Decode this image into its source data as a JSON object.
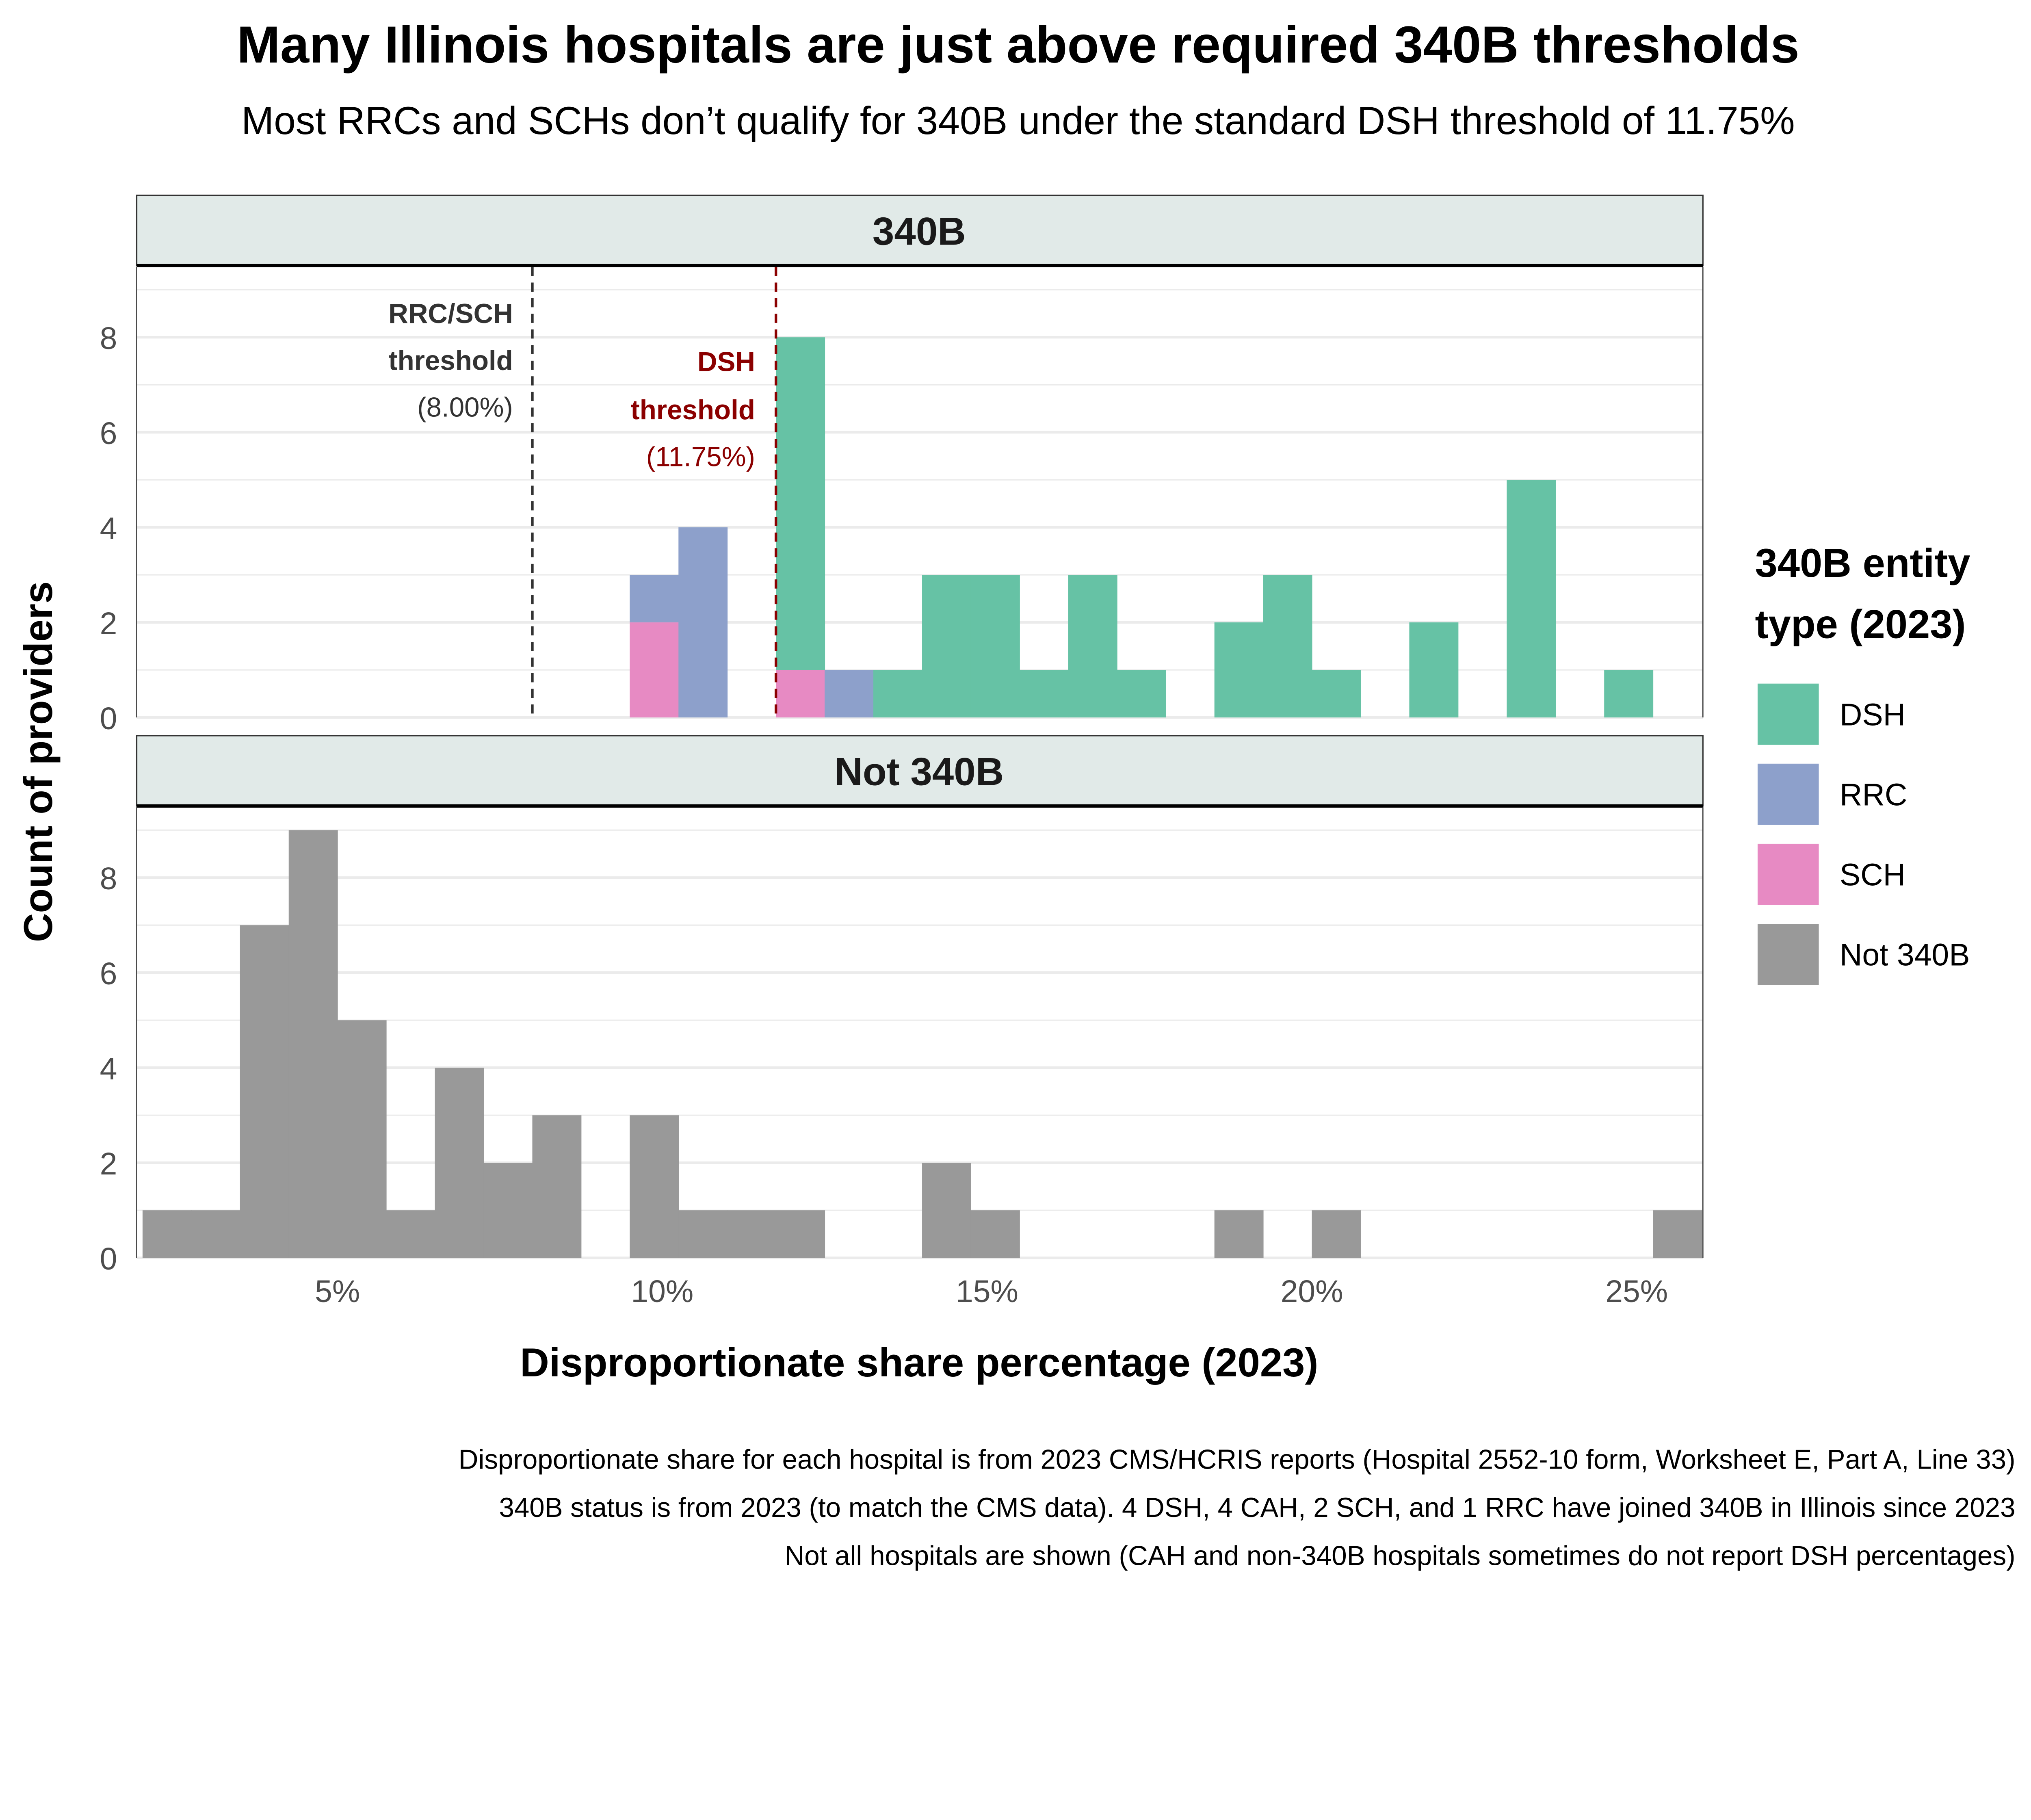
{
  "chart_data": {
    "type": "bar",
    "subtype": "stacked histogram, faceted",
    "title": "Many Illinois hospitals are just above required 340B thresholds",
    "subtitle": "Most RRCs and SCHs don’t qualify for 340B under the standard DSH threshold of 11.75%",
    "xlabel": "Disproportionate share percentage (2023)",
    "ylabel": "Count of providers",
    "xlim": [
      1.91,
      26.02
    ],
    "ylim": [
      0,
      9.48
    ],
    "x_ticks": [
      {
        "value": 5,
        "label": "5%"
      },
      {
        "value": 10,
        "label": "10%"
      },
      {
        "value": 15,
        "label": "15%"
      },
      {
        "value": 20,
        "label": "20%"
      },
      {
        "value": 25,
        "label": "25%"
      }
    ],
    "y_ticks": [
      {
        "value": 0,
        "label": "0"
      },
      {
        "value": 2,
        "label": "2"
      },
      {
        "value": 4,
        "label": "4"
      },
      {
        "value": 6,
        "label": "6"
      },
      {
        "value": 8,
        "label": "8"
      }
    ],
    "grid": true,
    "bin_start": 2.0,
    "bin_width": 0.75,
    "legend": {
      "title_line1": "340B entity",
      "title_line2": "type (2023)",
      "placement": "right",
      "entries": [
        {
          "name": "DSH",
          "color": "#66c2a5"
        },
        {
          "name": "RRC",
          "color": "#8da0cb"
        },
        {
          "name": "SCH",
          "color": "#e78ac3"
        },
        {
          "name": "Not 340B",
          "color": "#999999"
        }
      ]
    },
    "panels": [
      {
        "label": "340B",
        "series": [
          {
            "name": "SCH",
            "color": "#e78ac3",
            "values": [
              0,
              0,
              0,
              0,
              0,
              0,
              0,
              0,
              0,
              0,
              2,
              0,
              0,
              1,
              0,
              0,
              0,
              0,
              0,
              0,
              0,
              0,
              0,
              0,
              0,
              0,
              0,
              0,
              0,
              0,
              0,
              0
            ]
          },
          {
            "name": "RRC",
            "color": "#8da0cb",
            "values": [
              0,
              0,
              0,
              0,
              0,
              0,
              0,
              0,
              0,
              0,
              1,
              4,
              0,
              0,
              1,
              0,
              0,
              0,
              0,
              0,
              0,
              0,
              0,
              0,
              0,
              0,
              0,
              0,
              0,
              0,
              0,
              0
            ]
          },
          {
            "name": "DSH",
            "color": "#66c2a5",
            "values": [
              0,
              0,
              0,
              0,
              0,
              0,
              0,
              0,
              0,
              0,
              0,
              0,
              0,
              7,
              0,
              1,
              3,
              3,
              1,
              3,
              1,
              0,
              2,
              3,
              1,
              0,
              2,
              0,
              5,
              0,
              1,
              0
            ]
          }
        ],
        "thresholds": [
          {
            "value": 8.0,
            "line1": "RRC/SCH",
            "line2": "threshold",
            "line3": "(8.00%)",
            "color": "#333333"
          },
          {
            "value": 11.75,
            "line1": "DSH",
            "line2": "threshold",
            "line3": "(11.75%)",
            "color": "#8b0000"
          }
        ]
      },
      {
        "label": "Not 340B",
        "series": [
          {
            "name": "Not 340B",
            "color": "#999999",
            "values": [
              1,
              1,
              7,
              9,
              5,
              1,
              4,
              2,
              3,
              0,
              3,
              1,
              1,
              1,
              0,
              0,
              2,
              1,
              0,
              0,
              0,
              0,
              1,
              0,
              1,
              0,
              0,
              0,
              0,
              0,
              0,
              1
            ]
          }
        ],
        "thresholds": []
      }
    ],
    "notes": [
      "Disproportionate share for each hospital is from 2023 CMS/HCRIS reports (Hospital 2552-10 form, Worksheet E, Part A, Line 33)",
      "340B status is from 2023 (to match the CMS data). 4 DSH, 4 CAH, 2 SCH, and 1 RRC have joined 340B in Illinois since 2023",
      "Not all hospitals are shown (CAH and non-340B hospitals sometimes do not report DSH percentages)"
    ]
  }
}
